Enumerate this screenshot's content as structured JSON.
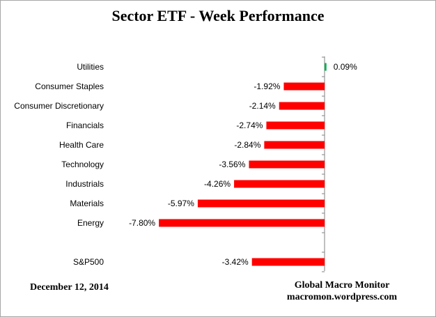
{
  "chart_data": {
    "type": "bar",
    "orientation": "horizontal",
    "title": "Sector ETF - Week Performance",
    "categories": [
      "Utilities",
      "Consumer Staples",
      "Consumer Discretionary",
      "Financials",
      "Health Care",
      "Technology",
      "Industrials",
      "Materials",
      "Energy",
      "",
      "S&P500"
    ],
    "values": [
      0.09,
      -1.92,
      -2.14,
      -2.74,
      -2.84,
      -3.56,
      -4.26,
      -5.97,
      -7.8,
      null,
      -3.42
    ],
    "value_labels": [
      "0.09%",
      "-1.92%",
      "-2.14%",
      "-2.74%",
      "-2.84%",
      "-3.56%",
      "-4.26%",
      "-5.97%",
      "-7.80%",
      "",
      "-3.42%"
    ],
    "unit": "%",
    "positive_color": "#00b050",
    "negative_color": "#ff0000",
    "grid": false,
    "legend": "none"
  },
  "footer": {
    "date": "December 12,  2014",
    "source_line1": "Global Macro Monitor",
    "source_line2": "macromon.wordpress.com"
  }
}
